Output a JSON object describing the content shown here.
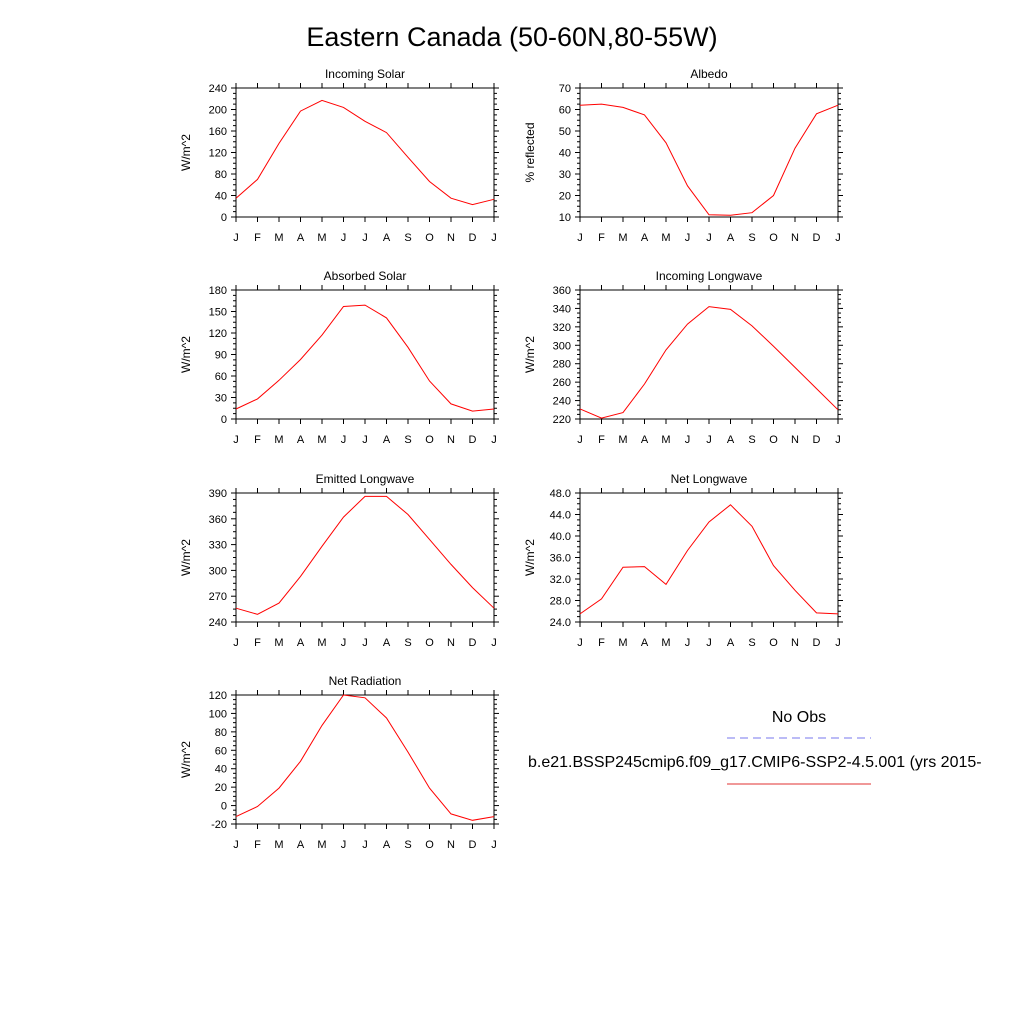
{
  "title": "Eastern Canada (50-60N,80-55W)",
  "months": [
    "J",
    "F",
    "M",
    "A",
    "M",
    "J",
    "J",
    "A",
    "S",
    "O",
    "N",
    "D",
    "J"
  ],
  "legend": {
    "obs_label": "No Obs",
    "obs_color": "#7777ee",
    "model_label": "b.e21.BSSP245cmip6.f09_g17.CMIP6-SSP2-4.5.001 (yrs 2015-",
    "model_color": "#e03030"
  },
  "line_color": "#ff0000",
  "chart_data": [
    {
      "type": "line",
      "title": "Incoming Solar",
      "ylabel": "W/m^2",
      "ylim": [
        0,
        240
      ],
      "yticks": [
        0,
        40,
        80,
        120,
        160,
        200,
        240
      ],
      "yticklabels": [
        "0",
        "40",
        "80",
        "120",
        "160",
        "200",
        "240"
      ],
      "values": [
        35,
        70,
        137,
        197,
        217,
        204,
        178,
        157,
        111,
        66,
        35,
        23,
        33
      ]
    },
    {
      "type": "line",
      "title": "Albedo",
      "ylabel": "% reflected",
      "ylim": [
        10,
        70
      ],
      "yticks": [
        10,
        20,
        30,
        40,
        50,
        60,
        70
      ],
      "yticklabels": [
        "10",
        "20",
        "30",
        "40",
        "50",
        "60",
        "70"
      ],
      "values": [
        62,
        62.5,
        61,
        57.5,
        44.5,
        24.5,
        11,
        10.8,
        12,
        20,
        42,
        58,
        62
      ]
    },
    {
      "type": "line",
      "title": "Absorbed Solar",
      "ylabel": "W/m^2",
      "ylim": [
        0,
        180
      ],
      "yticks": [
        0,
        30,
        60,
        90,
        120,
        150,
        180
      ],
      "yticklabels": [
        "0",
        "30",
        "60",
        "90",
        "120",
        "150",
        "180"
      ],
      "values": [
        14,
        28,
        54,
        83,
        117,
        157,
        159,
        141,
        100,
        53,
        21,
        11,
        14
      ]
    },
    {
      "type": "line",
      "title": "Incoming Longwave",
      "ylabel": "W/m^2",
      "ylim": [
        220,
        360
      ],
      "yticks": [
        220,
        240,
        260,
        280,
        300,
        320,
        340,
        360
      ],
      "yticklabels": [
        "220",
        "240",
        "260",
        "280",
        "300",
        "320",
        "340",
        "360"
      ],
      "values": [
        231,
        221,
        227,
        258,
        295,
        323,
        342,
        339,
        321,
        299,
        276,
        253,
        230
      ]
    },
    {
      "type": "line",
      "title": "Emitted Longwave",
      "ylabel": "W/m^2",
      "ylim": [
        240,
        390
      ],
      "yticks": [
        240,
        270,
        300,
        330,
        360,
        390
      ],
      "yticklabels": [
        "240",
        "270",
        "300",
        "330",
        "360",
        "390"
      ],
      "values": [
        256,
        249,
        262,
        293,
        328,
        362,
        386,
        386,
        365,
        336,
        307,
        280,
        256
      ]
    },
    {
      "type": "line",
      "title": "Net Longwave",
      "ylabel": "W/m^2",
      "ylim": [
        24,
        48
      ],
      "yticks": [
        24,
        28,
        32,
        36,
        40,
        44,
        48
      ],
      "yticklabels": [
        "24.0",
        "28.0",
        "32.0",
        "36.0",
        "40.0",
        "44.0",
        "48.0"
      ],
      "values": [
        25.5,
        28.3,
        34.2,
        34.3,
        31,
        37.3,
        42.6,
        45.8,
        41.8,
        34.5,
        29.9,
        25.7,
        25.5
      ]
    },
    {
      "type": "line",
      "title": "Net Radiation",
      "ylabel": "W/m^2",
      "ylim": [
        -20,
        120
      ],
      "yticks": [
        -20,
        0,
        20,
        40,
        60,
        80,
        100,
        120
      ],
      "yticklabels": [
        "-20",
        "0",
        "20",
        "40",
        "60",
        "80",
        "100",
        "120"
      ],
      "values": [
        -12,
        -1,
        19,
        48,
        87,
        120,
        117,
        95,
        58,
        19,
        -9,
        -16,
        -12
      ]
    }
  ]
}
